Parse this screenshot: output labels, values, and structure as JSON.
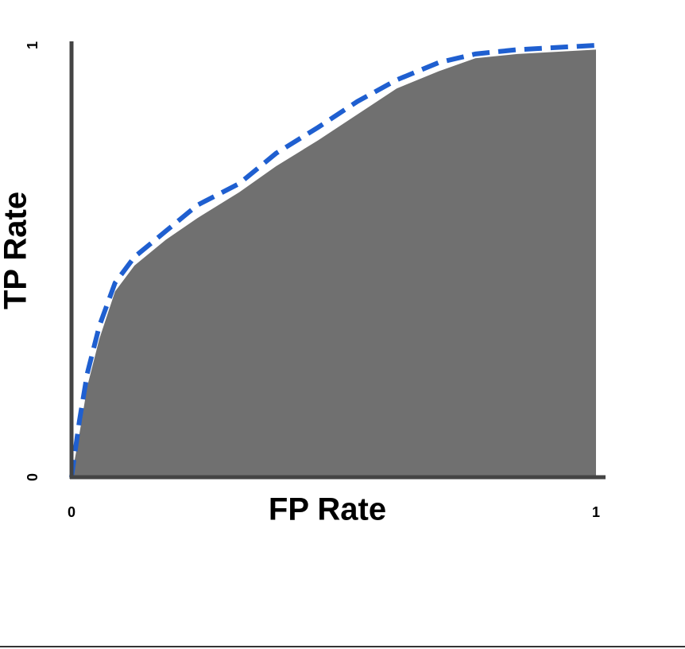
{
  "chart_data": {
    "type": "area",
    "xlabel": "FP Rate",
    "ylabel": "TP Rate",
    "x": [
      0,
      0.015,
      0.03,
      0.053,
      0.083,
      0.12,
      0.18,
      0.24,
      0.32,
      0.39,
      0.47,
      0.545,
      0.62,
      0.7,
      0.77,
      0.85,
      1
    ],
    "series": [
      {
        "color": "#707070",
        "style": "area",
        "values": [
          0,
          0.1,
          0.21,
          0.32,
          0.43,
          0.49,
          0.55,
          0.6,
          0.66,
          0.72,
          0.78,
          0.84,
          0.9,
          0.94,
          0.97,
          0.98,
          0.99
        ]
      },
      {
        "color": "#1f5fd0",
        "style": "dashed",
        "values": [
          0,
          0.13,
          0.24,
          0.35,
          0.45,
          0.51,
          0.57,
          0.63,
          0.68,
          0.75,
          0.81,
          0.87,
          0.92,
          0.96,
          0.98,
          0.99,
          1
        ]
      }
    ],
    "xlim": [
      0,
      1
    ],
    "ylim": [
      0,
      1
    ],
    "xticks": [
      0,
      1
    ],
    "yticks": [
      0,
      1
    ]
  }
}
